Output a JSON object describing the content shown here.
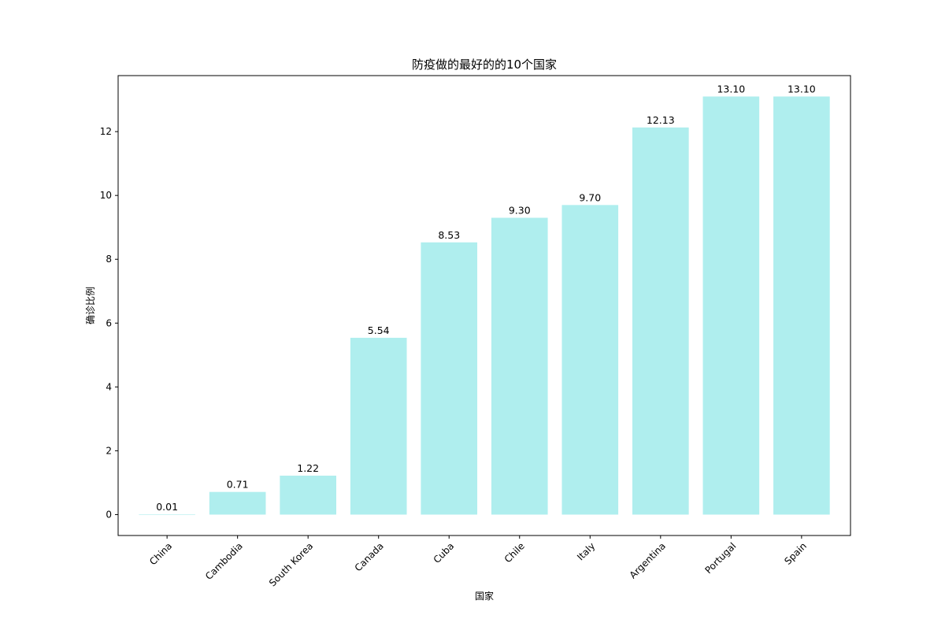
{
  "chart_data": {
    "type": "bar",
    "title": "防疫做的最好的的10个国家",
    "xlabel": "国家",
    "ylabel": "确诊比例",
    "categories": [
      "China",
      "Cambodia",
      "South Korea",
      "Canada",
      "Cuba",
      "Chile",
      "Italy",
      "Argentina",
      "Portugal",
      "Spain"
    ],
    "values": [
      0.01,
      0.71,
      1.22,
      5.54,
      8.53,
      9.3,
      9.7,
      12.13,
      13.1,
      13.1
    ],
    "data_labels": [
      "0.01",
      "0.71",
      "1.22",
      "5.54",
      "8.53",
      "9.30",
      "9.70",
      "12.13",
      "13.10",
      "13.10"
    ],
    "yticks": [
      0,
      2,
      4,
      6,
      8,
      10,
      12
    ],
    "ylim": [
      -0.655,
      13.755
    ],
    "bar_color": "#afeeee",
    "grid": false,
    "xtick_rotation": 45
  }
}
